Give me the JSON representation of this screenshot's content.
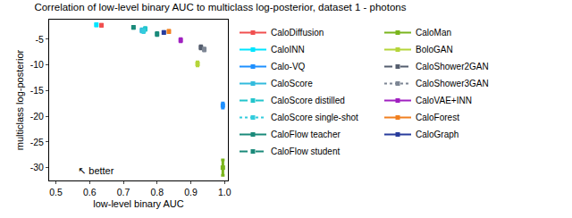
{
  "chart_data": {
    "type": "scatter",
    "title": "Correlation of low-level binary AUC to multiclass log-posterior, dataset 1 - photons",
    "x_label": "low-level binary AUC",
    "y_label": "multiclass log-posterior",
    "xlim": [
      0.48,
      1.01
    ],
    "xticks": [
      0.5,
      0.6,
      0.7,
      0.8,
      0.9,
      {
        "value": 1.0,
        "label": "1.0"
      }
    ],
    "ylim": [
      -32.5,
      -1.2
    ],
    "yticks": [
      -30,
      -25,
      -20,
      -15,
      -10,
      -5
    ],
    "grid": false,
    "legend": "right",
    "annotations": [
      {
        "text": "↖ better",
        "x": 0.56,
        "y": -30.5
      }
    ],
    "series": [
      {
        "name": "CaloDiffusion",
        "color": "#f05050",
        "line_style": "solid",
        "marker": "square",
        "x": [
          0.635
        ],
        "values": [
          -2.3
        ],
        "y_error": [
          0.2
        ]
      },
      {
        "name": "CaloINN",
        "color": "#00e5ff",
        "line_style": "solid",
        "marker": "square",
        "x": [
          0.62
        ],
        "values": [
          -2.2
        ],
        "y_error": [
          0.2
        ]
      },
      {
        "name": "Calo-VQ",
        "color": "#1e90ff",
        "line_style": "solid",
        "marker": "square",
        "x": [
          0.995
        ],
        "values": [
          -17.9
        ],
        "y_error": [
          0.5
        ]
      },
      {
        "name": "CaloScore",
        "color": "#33bbdd",
        "line_style": "solid",
        "marker": "square",
        "x": [
          0.755
        ],
        "values": [
          -3.3
        ],
        "y_error": [
          0.3
        ]
      },
      {
        "name": "CaloScore distilled",
        "color": "#22c5cc",
        "line_style": "dash",
        "marker": "square",
        "x": [
          0.765
        ],
        "values": [
          -3.0
        ],
        "y_error": [
          0.3
        ]
      },
      {
        "name": "CaloScore single-shot",
        "color": "#33ccdd",
        "line_style": "dot",
        "marker": "square",
        "x": [
          0.76
        ],
        "values": [
          -3.4
        ],
        "y_error": [
          0.3
        ]
      },
      {
        "name": "CaloFlow teacher",
        "color": "#1a8a7a",
        "line_style": "solid",
        "marker": "square",
        "x": [
          0.73
        ],
        "values": [
          -2.7
        ],
        "y_error": [
          0.2
        ]
      },
      {
        "name": "CaloFlow student",
        "color": "#1a8a7a",
        "line_style": "dash",
        "marker": "square",
        "x": [
          0.8
        ],
        "values": [
          -4.0
        ],
        "y_error": [
          0.3
        ]
      },
      {
        "name": "CaloMan",
        "color": "#7ab51d",
        "line_style": "solid",
        "marker": "square",
        "x": [
          0.995
        ],
        "values": [
          -30.0
        ],
        "y_error": [
          1.5
        ]
      },
      {
        "name": "BoloGAN",
        "color": "#b5d53a",
        "line_style": "solid",
        "marker": "square",
        "x": [
          0.92
        ],
        "values": [
          -9.8
        ],
        "y_error": [
          0.4
        ]
      },
      {
        "name": "CaloShower2GAN",
        "color": "#555e6e",
        "line_style": "dash",
        "marker": "square",
        "x": [
          0.93
        ],
        "values": [
          -6.6
        ],
        "y_error": [
          0.3
        ]
      },
      {
        "name": "CaloShower3GAN",
        "color": "#7d8694",
        "line_style": "dot",
        "marker": "square",
        "x": [
          0.94
        ],
        "values": [
          -7.0
        ],
        "y_error": [
          0.3
        ]
      },
      {
        "name": "CaloVAE+INN",
        "color": "#a020c0",
        "line_style": "solid",
        "marker": "square",
        "x": [
          0.87
        ],
        "values": [
          -5.2
        ],
        "y_error": [
          0.3
        ]
      },
      {
        "name": "CaloForest",
        "color": "#f08020",
        "line_style": "solid",
        "marker": "square",
        "x": [
          0.835
        ],
        "values": [
          -3.5
        ],
        "y_error": [
          0.2
        ]
      },
      {
        "name": "CaloGraph",
        "color": "#283c9c",
        "line_style": "solid",
        "marker": "square",
        "x": [
          0.82
        ],
        "values": [
          -3.7
        ],
        "y_error": [
          0.2
        ]
      }
    ]
  }
}
